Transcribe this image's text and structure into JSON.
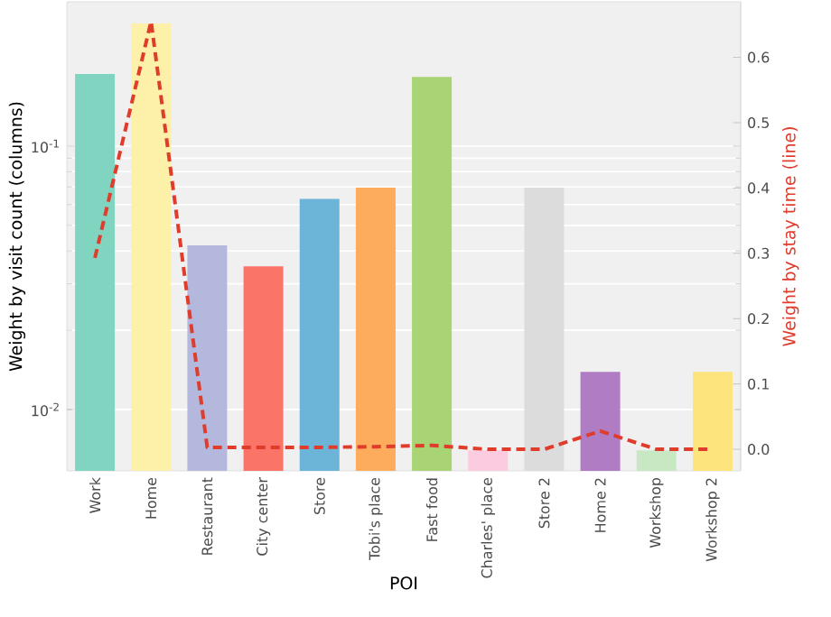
{
  "chart_data": {
    "type": "bar",
    "xlabel": "POI",
    "ylabel": "Weight by visit count (columns)",
    "y2label": "Weight by stay time (line)",
    "categories": [
      "Work",
      "Home",
      "Restaurant",
      "City center",
      "Store",
      "Tobi's place",
      "Fast food",
      "Charles' place",
      "Store 2",
      "Home 2",
      "Workshop",
      "Workshop 2"
    ],
    "series": [
      {
        "colors": [
          "#80d4c0",
          "#fdf0a8",
          "#b4b8dc",
          "#fb7468",
          "#6cb4d8",
          "#fdab5c",
          "#a8d474",
          "#fbcce0",
          "#dcdcdc",
          "#b07cc4",
          "#c8e8c4",
          "#fde47c"
        ],
        "values": [
          0.188,
          0.292,
          0.042,
          0.035,
          0.063,
          0.0695,
          0.183,
          0.007,
          0.0695,
          0.0139,
          0.007,
          0.0139
        ]
      },
      {
        "type": "line",
        "axis": "y2",
        "color": "#e03c2c",
        "line_style": "dashed",
        "marker": "none",
        "values": [
          0.293,
          0.655,
          0.003,
          0.003,
          0.003,
          0.004,
          0.006,
          0.0,
          0.0,
          0.028,
          0.0,
          0.0
        ]
      }
    ],
    "log": "y",
    "ylim": [
      0.00585,
      0.353
    ],
    "yticks": [
      {
        "value": 0.01,
        "label": "10$^{-2}$"
      },
      {
        "value": 0.1,
        "label": "10$^{-1}$"
      }
    ],
    "y2lim": [
      -0.033,
      0.685
    ],
    "y2ticks": [
      {
        "value": 0,
        "label": "0.0"
      },
      0.1,
      0.2,
      0.3,
      0.4,
      0.5,
      0.6
    ],
    "grid": "y"
  }
}
